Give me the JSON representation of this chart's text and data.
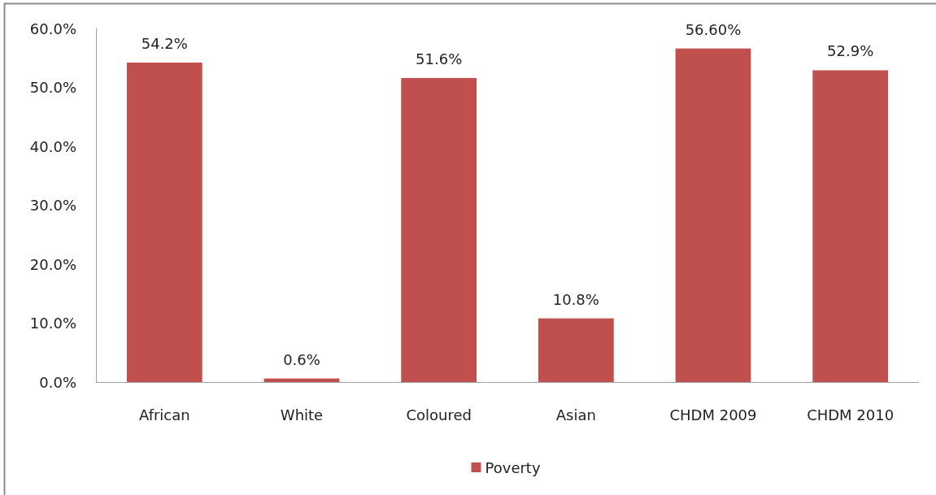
{
  "chart_data": {
    "type": "bar",
    "categories": [
      "African",
      "White",
      "Coloured",
      "Asian",
      "CHDM 2009",
      "CHDM 2010"
    ],
    "series": [
      {
        "name": "Poverty",
        "color": "#c0504d",
        "values": [
          54.2,
          0.6,
          51.6,
          10.8,
          56.6,
          52.9
        ],
        "value_labels": [
          "54.2%",
          "0.6%",
          "51.6%",
          "10.8%",
          "56.60%",
          "52.9%"
        ]
      }
    ],
    "ylim": [
      0,
      60
    ],
    "yticks": [
      {
        "value": 0,
        "label": "0.0%"
      },
      {
        "value": 10,
        "label": "10.0%"
      },
      {
        "value": 20,
        "label": "20.0%"
      },
      {
        "value": 30,
        "label": "30.0%"
      },
      {
        "value": 40,
        "label": "40.0%"
      },
      {
        "value": 50,
        "label": "50.0%"
      },
      {
        "value": 60,
        "label": "60.0%"
      }
    ],
    "legend": "bottom"
  }
}
